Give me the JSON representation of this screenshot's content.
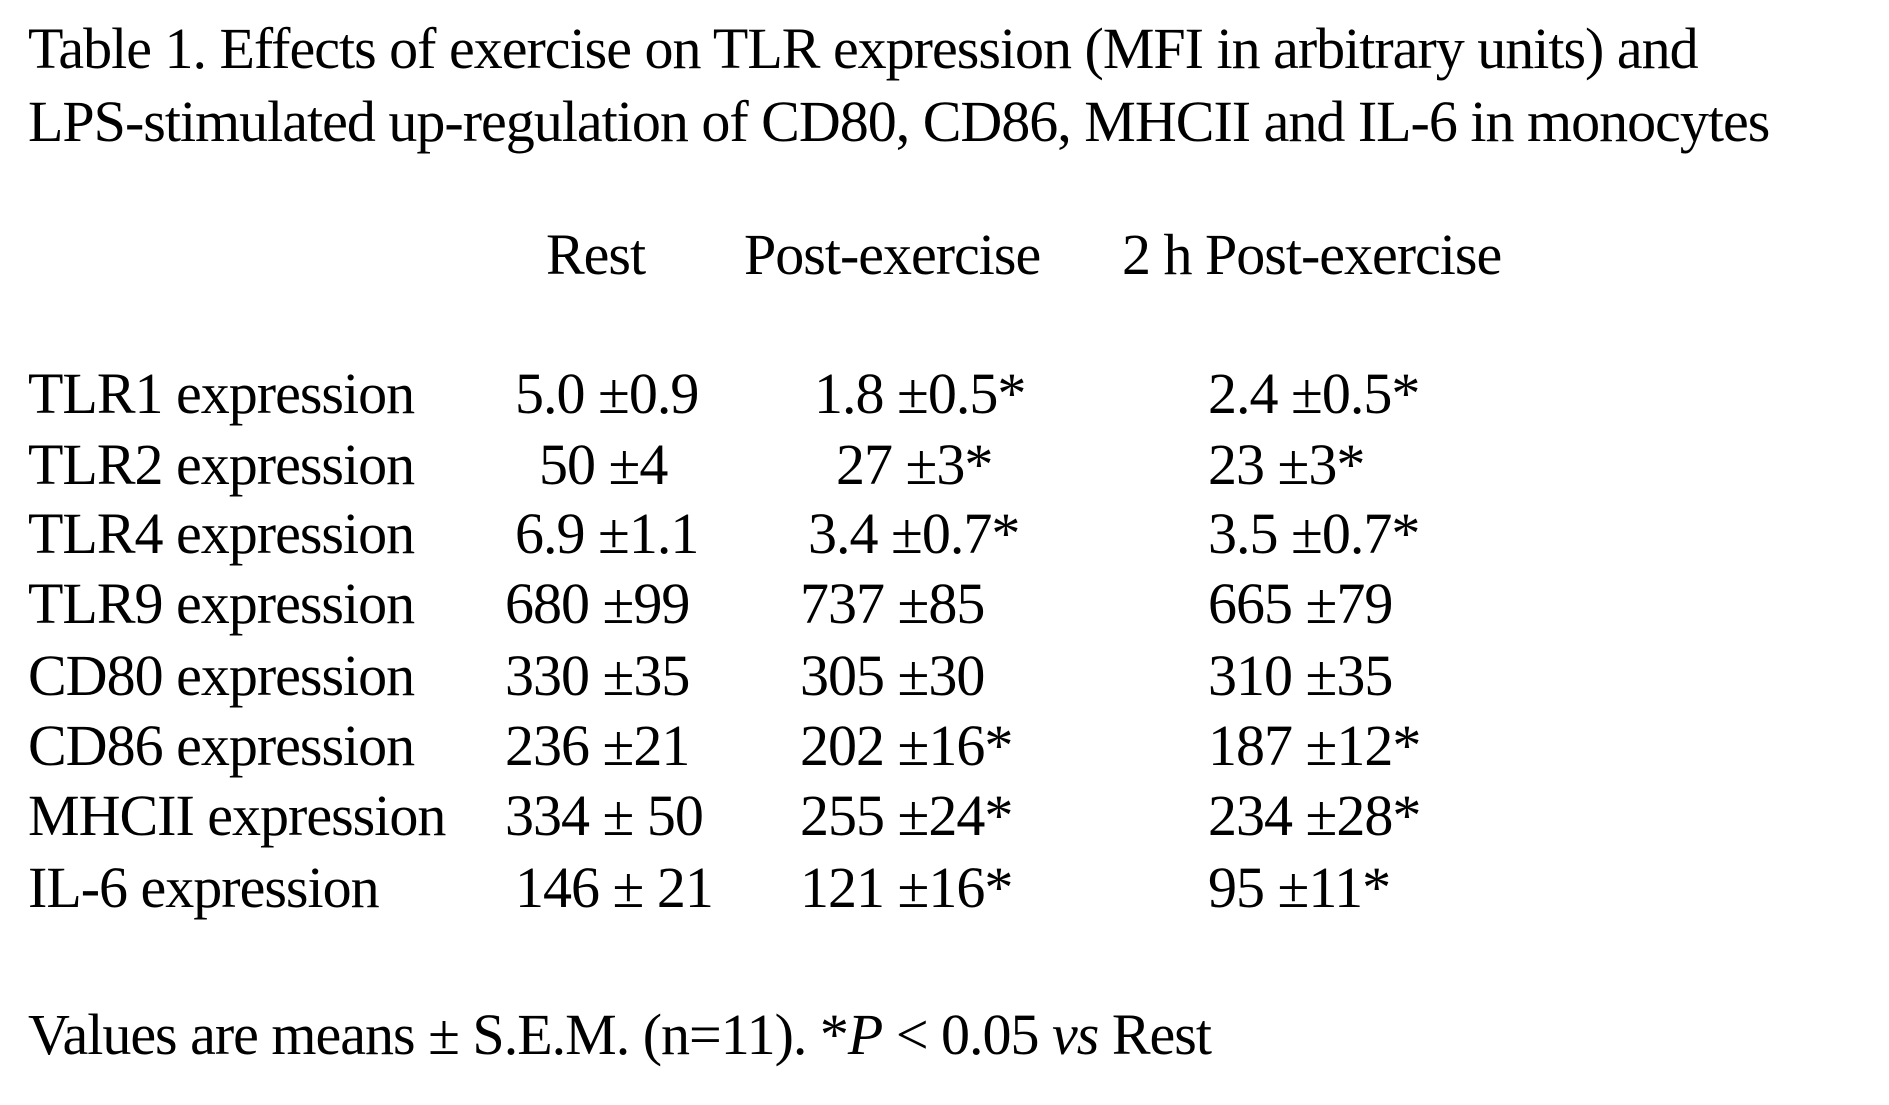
{
  "caption": {
    "line1": "Table 1. Effects of exercise on TLR expression (MFI in arbitrary units) and",
    "line2": "LPS-stimulated up-regulation of CD80, CD86, MHCII and IL-6 in monocytes"
  },
  "table": {
    "headers": [
      "Rest",
      "Post-exercise",
      "2 h Post-exercise"
    ],
    "rows": [
      {
        "label": "TLR1 expression",
        "rest": "5.0 ±0.9",
        "post": "1.8 ±0.5*",
        "post2h": "2.4 ±0.5*"
      },
      {
        "label": "TLR2 expression",
        "rest": "50 ±4",
        "post": "27 ±3*",
        "post2h": "23 ±3*"
      },
      {
        "label": "TLR4 expression",
        "rest": "6.9 ±1.1",
        "post": "3.4 ±0.7*",
        "post2h": "3.5 ±0.7*"
      },
      {
        "label": "TLR9 expression",
        "rest": "680 ±99",
        "post": "737 ±85",
        "post2h": "665 ±79"
      },
      {
        "label": "CD80 expression",
        "rest": "330 ±35",
        "post": "305 ±30",
        "post2h": "310 ±35"
      },
      {
        "label": "CD86 expression",
        "rest": "236 ±21",
        "post": "202 ±16*",
        "post2h": "187 ±12*"
      },
      {
        "label": "MHCII expression",
        "rest": "334 ± 50",
        "post": "255 ±24*",
        "post2h": "234 ±28*"
      },
      {
        "label": "IL-6 expression",
        "rest": "146 ± 21",
        "post": "121 ±16*",
        "post2h": "95 ±11*"
      }
    ]
  },
  "footnote": {
    "text_before": "Values are means ± S.E.M. (n=11). *",
    "p_symbol": "P",
    "text_middle": " < 0.05 ",
    "vs": "vs",
    "text_after": " Rest"
  }
}
